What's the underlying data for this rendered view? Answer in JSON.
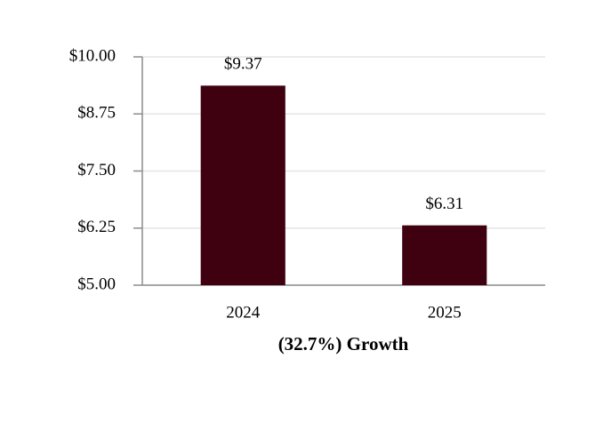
{
  "chart_data": {
    "type": "bar",
    "categories": [
      "2024",
      "2025"
    ],
    "values": [
      9.37,
      6.31
    ],
    "value_labels": [
      "$9.37",
      "$6.31"
    ],
    "color": "#3f000f",
    "x_label": "(32.7%) Growth",
    "ylim": [
      5,
      10
    ],
    "yticks": [
      {
        "value": 5,
        "label": "$5.00"
      },
      {
        "value": 6.25,
        "label": "$6.25"
      },
      {
        "value": 7.5,
        "label": "$7.50"
      },
      {
        "value": 8.75,
        "label": "$8.75"
      },
      {
        "value": 10,
        "label": "$10.00"
      }
    ],
    "grid": true
  }
}
